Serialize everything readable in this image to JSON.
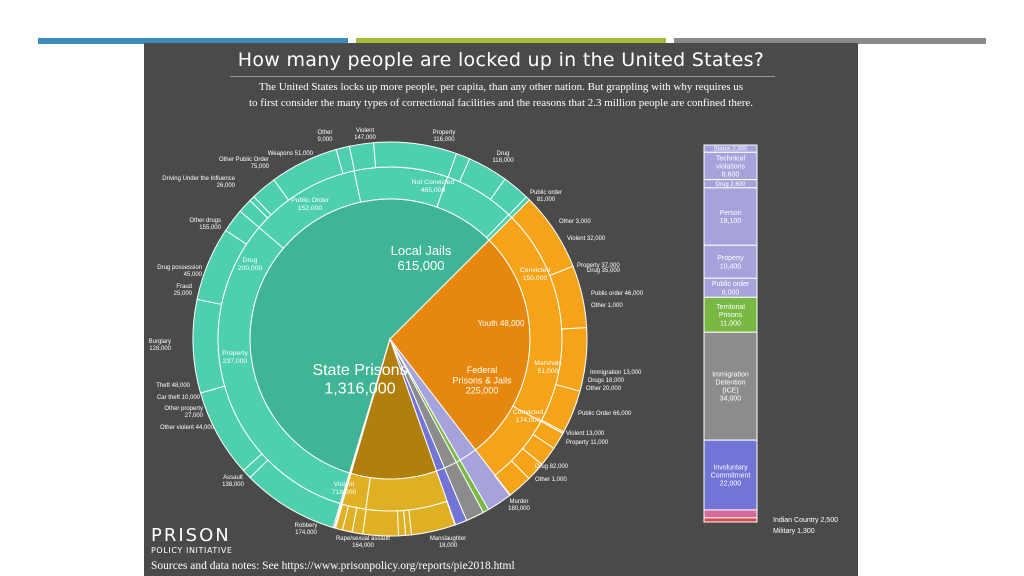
{
  "slide": {
    "bar_colors": [
      "#3d8bbd",
      "#a5bd36",
      "#8a8a8a"
    ]
  },
  "title": "How many people are locked up in the United States?",
  "subtitle_lines": [
    "The United States locks up more people, per capita, than any other nation.  But grappling with why requires us",
    "to first consider the many types of correctional facilities and the reasons that 2.3 million people are confined there."
  ],
  "footer": "Sources and data notes: See https://www.prisonpolicy.org/reports/pie2018.html",
  "logo": {
    "line1": "PRISON",
    "line2": "POLICY INITIATIVE"
  },
  "colors": {
    "state": "#3fb595",
    "state_light": "#4ecfae",
    "jail": "#e6880d",
    "jail_light": "#f5a41a",
    "federal": "#b07f0e",
    "federal_light": "#e0b024",
    "youth": "#a6a3dc",
    "territorial": "#79b843",
    "immigration": "#8c8c8c",
    "involuntary": "#7375d6",
    "indian": "#d96b9a",
    "military": "#d94a4a"
  },
  "chart_data": [
    {
      "type": "pie",
      "title": "How many people are locked up in the United States?",
      "inner_ring": [
        {
          "key": "state",
          "label": [
            "State Prisons",
            "1,316,000"
          ],
          "value": 1316000
        },
        {
          "key": "jail",
          "label": [
            "Local Jails",
            "615,000"
          ],
          "value": 615000
        },
        {
          "key": "youth",
          "label": [
            "Youth 48,000"
          ],
          "value": 48000
        },
        {
          "key": "territorial",
          "label": [],
          "value": 11000
        },
        {
          "key": "immigration",
          "label": [],
          "value": 34000
        },
        {
          "key": "involuntary",
          "label": [],
          "value": 22000
        },
        {
          "key": "federal",
          "label": [
            "Federal",
            "Prisons & Jails",
            "225,000"
          ],
          "value": 225000
        },
        {
          "key": "military",
          "label": [],
          "value": 1300
        },
        {
          "key": "indian",
          "label": [],
          "value": 2500
        }
      ],
      "middle_ring": [
        {
          "parent": "state",
          "label": [
            "Violent",
            "718,000"
          ],
          "value": 718000
        },
        {
          "parent": "state",
          "label": [
            "Property",
            "237,000"
          ],
          "value": 237000
        },
        {
          "parent": "state",
          "label": [
            "Drug",
            "200,000"
          ],
          "value": 200000
        },
        {
          "parent": "state",
          "label": [
            "Public Order",
            "152,000"
          ],
          "value": 152000
        },
        {
          "parent": "state",
          "label": [],
          "value": 9000
        },
        {
          "parent": "jail",
          "label": [
            "Not Convicted",
            "465,000"
          ],
          "value": 465000
        },
        {
          "parent": "jail",
          "label": [
            "Convicted",
            "150,000"
          ],
          "value": 150000
        },
        {
          "parent": "federal",
          "label": [
            "Convicted",
            "174,000"
          ],
          "value": 174000
        },
        {
          "parent": "federal",
          "label": [
            "Marshals",
            "51,000"
          ],
          "value": 51000
        }
      ],
      "outer_ring": [
        {
          "parent": "state",
          "label": [
            "Murder",
            "180,000"
          ],
          "value": 180000
        },
        {
          "parent": "state",
          "label": [
            "Manslaughter",
            "18,000"
          ],
          "value": 18000
        },
        {
          "parent": "state",
          "label": [
            "Rape/sexual assault",
            "164,000"
          ],
          "value": 164000
        },
        {
          "parent": "state",
          "label": [
            "Robbery",
            "174,000"
          ],
          "value": 174000
        },
        {
          "parent": "state",
          "label": [
            "Assault",
            "138,000"
          ],
          "value": 138000
        },
        {
          "parent": "state",
          "label": [
            "Other violent 44,000"
          ],
          "value": 44000
        },
        {
          "parent": "state",
          "label": [
            "Other property",
            "27,000"
          ],
          "value": 27000
        },
        {
          "parent": "state",
          "label": [
            "Car theft 10,000"
          ],
          "value": 10000
        },
        {
          "parent": "state",
          "label": [
            "Theft 48,000"
          ],
          "value": 48000
        },
        {
          "parent": "state",
          "label": [
            "Burglary",
            "128,000"
          ],
          "value": 128000
        },
        {
          "parent": "state",
          "label": [
            "Fraud",
            "25,000"
          ],
          "value": 25000
        },
        {
          "parent": "state",
          "label": [
            "Drug possession",
            "45,000"
          ],
          "value": 45000
        },
        {
          "parent": "state",
          "label": [
            "Other drugs",
            "155,000"
          ],
          "value": 155000
        },
        {
          "parent": "state",
          "label": [
            "Driving Under the Influence",
            "26,000"
          ],
          "value": 26000
        },
        {
          "parent": "state",
          "label": [
            "Other Public Order",
            "75,000"
          ],
          "value": 75000
        },
        {
          "parent": "state",
          "label": [
            "Weapons  51,000"
          ],
          "value": 51000
        },
        {
          "parent": "state",
          "label": [
            "Other",
            "9,000"
          ],
          "value": 9000
        },
        {
          "parent": "jail",
          "label": [
            "Violent",
            "147,000"
          ],
          "value": 147000
        },
        {
          "parent": "jail",
          "label": [
            "Property",
            "116,000"
          ],
          "value": 116000
        },
        {
          "parent": "jail",
          "label": [
            "Drug",
            "118,000"
          ],
          "value": 118000
        },
        {
          "parent": "jail",
          "label": [
            "Public order",
            "81,000"
          ],
          "value": 81000
        },
        {
          "parent": "jail",
          "label": [
            "Other 3,000"
          ],
          "value": 3000
        },
        {
          "parent": "jail",
          "label": [
            "Violent 32,000"
          ],
          "value": 32000
        },
        {
          "parent": "jail",
          "label": [
            "Property 37,000"
          ],
          "value": 37000
        },
        {
          "parent": "jail",
          "label": [
            "Drug 35,000"
          ],
          "value": 35000
        },
        {
          "parent": "jail",
          "label": [
            "Public order 46,000"
          ],
          "value": 46000
        },
        {
          "parent": "jail",
          "label": [],
          "value": 1000
        },
        {
          "parent": "federal",
          "label": [
            "Other 1,000"
          ],
          "value": 1000
        },
        {
          "parent": "federal",
          "label": [
            "Drug 82,000"
          ],
          "value": 82000
        },
        {
          "parent": "federal",
          "label": [
            "Property 11,000"
          ],
          "value": 11000
        },
        {
          "parent": "federal",
          "label": [
            "Violent 13,000"
          ],
          "value": 13000
        },
        {
          "parent": "federal",
          "label": [
            "Public Order 66,000"
          ],
          "value": 66000
        },
        {
          "parent": "federal",
          "label": [
            "Other 20,000"
          ],
          "value": 20000
        },
        {
          "parent": "federal",
          "label": [
            "Drugs 18,000"
          ],
          "value": 18000
        },
        {
          "parent": "federal",
          "label": [
            "Immigration 13,000"
          ],
          "value": 13000
        }
      ],
      "extra_labels": [
        [
          "Other 1,000"
        ]
      ]
    },
    {
      "type": "bar",
      "orientation": "stacked-vertical",
      "segments": [
        {
          "label": [
            "Status 2,300"
          ],
          "value": 2300,
          "color": "#a6a3dc"
        },
        {
          "label": [
            "Technical",
            "violations",
            "8,600"
          ],
          "value": 8600,
          "color": "#a6a3dc"
        },
        {
          "label": [
            "Drug 2,600"
          ],
          "value": 2600,
          "color": "#a6a3dc"
        },
        {
          "label": [
            "Person",
            "18,100"
          ],
          "value": 18100,
          "color": "#a6a3dc"
        },
        {
          "label": [
            "Property",
            "10,400"
          ],
          "value": 10400,
          "color": "#a6a3dc"
        },
        {
          "label": [
            "Public order",
            "6,000"
          ],
          "value": 6000,
          "color": "#a6a3dc"
        },
        {
          "label": [
            "Territorial",
            "Prisons",
            "11,000"
          ],
          "value": 11000,
          "color": "#79b843"
        },
        {
          "label": [
            "Immigration",
            "Detention",
            "(ICE)",
            "34,000"
          ],
          "value": 34000,
          "color": "#8c8c8c"
        },
        {
          "label": [
            "Involuntary",
            "Commitment",
            "22,000"
          ],
          "value": 22000,
          "color": "#7375d6"
        },
        {
          "label": [],
          "value": 2500,
          "color": "#d96b9a"
        },
        {
          "label": [],
          "value": 1300,
          "color": "#d94a4a"
        }
      ],
      "side_labels": [
        [
          "Indian Country 2,500"
        ],
        [
          "Military 1,300"
        ]
      ]
    }
  ]
}
